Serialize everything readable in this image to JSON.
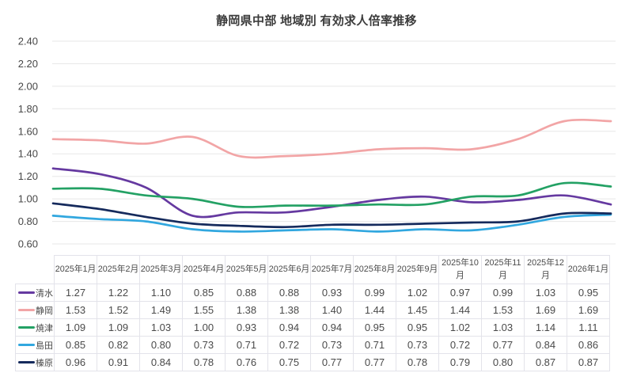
{
  "title": "静岡県中部 地域別 有効求人倍率推移",
  "chart_data": {
    "type": "line",
    "title": "静岡県中部 地域別 有効求人倍率推移",
    "x": [
      "2025年1月",
      "2025年2月",
      "2025年3月",
      "2025年4月",
      "2025年5月",
      "2025年6月",
      "2025年7月",
      "2025年8月",
      "2025年9月",
      "2025年10月",
      "2025年11月",
      "2025年12月",
      "2026年1月"
    ],
    "series": [
      {
        "name": "清水",
        "color": "#6539A0",
        "values": [
          1.27,
          1.22,
          1.1,
          0.85,
          0.88,
          0.88,
          0.93,
          0.99,
          1.02,
          0.97,
          0.99,
          1.03,
          0.95
        ]
      },
      {
        "name": "静岡",
        "color": "#F2A5A6",
        "values": [
          1.53,
          1.52,
          1.49,
          1.55,
          1.38,
          1.38,
          1.4,
          1.44,
          1.45,
          1.44,
          1.53,
          1.69,
          1.69
        ]
      },
      {
        "name": "焼津",
        "color": "#23A164",
        "values": [
          1.09,
          1.09,
          1.03,
          1.0,
          0.93,
          0.94,
          0.94,
          0.95,
          0.95,
          1.02,
          1.03,
          1.14,
          1.11
        ]
      },
      {
        "name": "島田",
        "color": "#31A7DF",
        "values": [
          0.85,
          0.82,
          0.8,
          0.73,
          0.71,
          0.72,
          0.73,
          0.71,
          0.73,
          0.72,
          0.77,
          0.84,
          0.86
        ]
      },
      {
        "name": "榛原",
        "color": "#152A5C",
        "values": [
          0.96,
          0.91,
          0.84,
          0.78,
          0.76,
          0.75,
          0.77,
          0.77,
          0.78,
          0.79,
          0.8,
          0.87,
          0.87
        ]
      }
    ],
    "ylim": [
      0.6,
      2.4
    ],
    "ytick_step": 0.2,
    "yticks": [
      "2.40",
      "2.20",
      "2.00",
      "1.80",
      "1.60",
      "1.40",
      "1.20",
      "1.00",
      "0.80",
      "0.60"
    ],
    "xlabel": "",
    "ylabel": "",
    "grid": true,
    "line_style": "smooth",
    "legend_position": "table-left-column",
    "colors": {
      "title_text": "#3B3B3B",
      "axis_text": "#474747",
      "table_text": "#4A4A4A",
      "gridline": "#E7E7E7",
      "table_border": "#E3E3EA",
      "background": "#FFFFFF"
    }
  }
}
